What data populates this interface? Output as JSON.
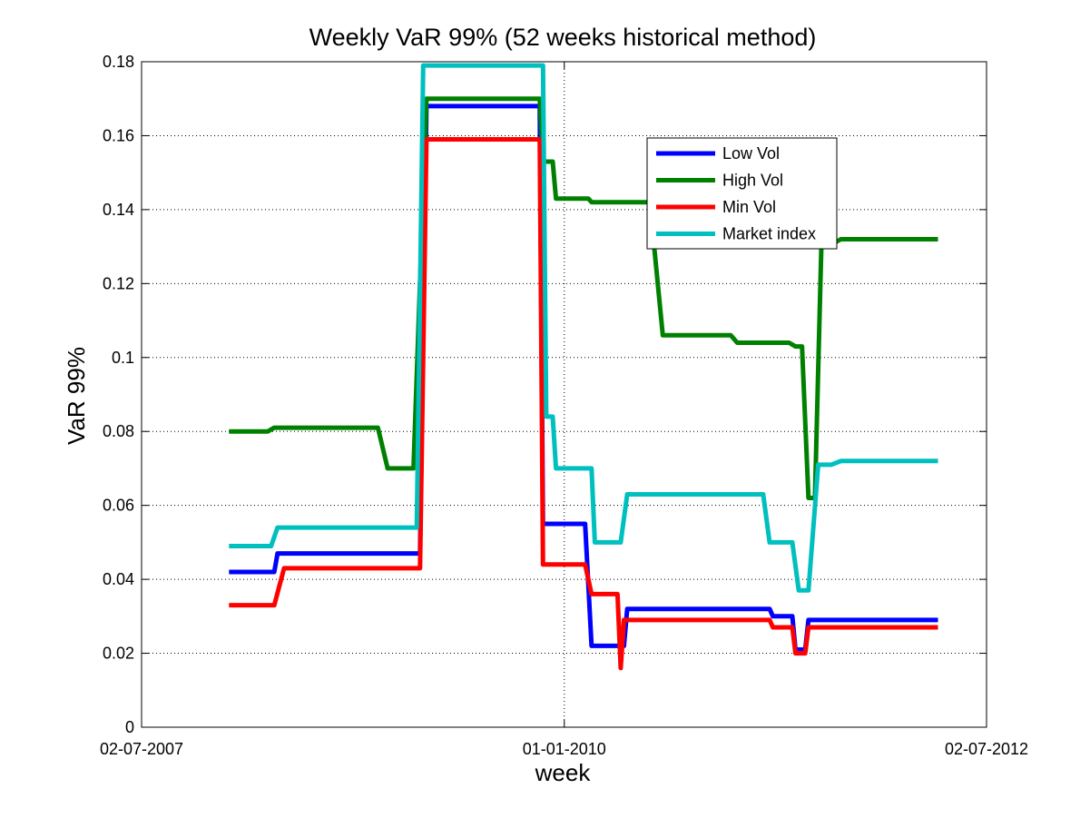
{
  "chart_data": {
    "type": "line",
    "title": "Weekly VaR 99% (52 weeks historical method)",
    "xlabel": "week",
    "ylabel": "VaR 99%",
    "x_ticks": [
      "02-07-2007",
      "01-01-2010",
      "02-07-2012"
    ],
    "x_range": [
      "2007-07-02",
      "2012-07-02"
    ],
    "y_ticks": [
      "0",
      "0.02",
      "0.04",
      "0.06",
      "0.08",
      "0.1",
      "0.12",
      "0.14",
      "0.16",
      "0.18"
    ],
    "ylim": [
      0,
      0.18
    ],
    "grid": "dotted",
    "legend_position": "upper-right",
    "series": [
      {
        "name": "Low Vol",
        "color": "#0000ff",
        "points": [
          [
            "2008-01-07",
            0.042
          ],
          [
            "2008-04-14",
            0.042
          ],
          [
            "2008-04-21",
            0.047
          ],
          [
            "2009-02-23",
            0.047
          ],
          [
            "2009-03-09",
            0.168
          ],
          [
            "2009-11-09",
            0.168
          ],
          [
            "2009-11-16",
            0.055
          ],
          [
            "2010-02-15",
            0.055
          ],
          [
            "2010-03-01",
            0.022
          ],
          [
            "2010-05-10",
            0.022
          ],
          [
            "2010-05-17",
            0.032
          ],
          [
            "2011-03-21",
            0.032
          ],
          [
            "2011-03-28",
            0.03
          ],
          [
            "2011-05-09",
            0.03
          ],
          [
            "2011-05-16",
            0.021
          ],
          [
            "2011-06-06",
            0.021
          ],
          [
            "2011-06-13",
            0.029
          ],
          [
            "2012-03-19",
            0.029
          ]
        ]
      },
      {
        "name": "High Vol",
        "color": "#008000",
        "points": [
          [
            "2008-01-07",
            0.08
          ],
          [
            "2008-03-31",
            0.08
          ],
          [
            "2008-04-14",
            0.081
          ],
          [
            "2008-11-24",
            0.081
          ],
          [
            "2008-12-15",
            0.07
          ],
          [
            "2009-02-09",
            0.07
          ],
          [
            "2009-03-09",
            0.17
          ],
          [
            "2009-11-09",
            0.17
          ],
          [
            "2009-11-16",
            0.153
          ],
          [
            "2009-12-07",
            0.153
          ],
          [
            "2009-12-14",
            0.143
          ],
          [
            "2010-02-22",
            0.143
          ],
          [
            "2010-03-01",
            0.142
          ],
          [
            "2010-07-05",
            0.142
          ],
          [
            "2010-08-02",
            0.106
          ],
          [
            "2010-12-27",
            0.106
          ],
          [
            "2011-01-10",
            0.104
          ],
          [
            "2011-05-02",
            0.104
          ],
          [
            "2011-05-16",
            0.103
          ],
          [
            "2011-05-30",
            0.103
          ],
          [
            "2011-06-13",
            0.062
          ],
          [
            "2011-06-27",
            0.062
          ],
          [
            "2011-07-11",
            0.131
          ],
          [
            "2011-08-08",
            0.131
          ],
          [
            "2011-08-22",
            0.132
          ],
          [
            "2012-03-19",
            0.132
          ]
        ]
      },
      {
        "name": "Min Vol",
        "color": "#ff0000",
        "points": [
          [
            "2008-01-07",
            0.033
          ],
          [
            "2008-04-14",
            0.033
          ],
          [
            "2008-05-05",
            0.043
          ],
          [
            "2009-02-23",
            0.043
          ],
          [
            "2009-03-09",
            0.159
          ],
          [
            "2009-11-09",
            0.159
          ],
          [
            "2009-11-16",
            0.044
          ],
          [
            "2010-02-15",
            0.044
          ],
          [
            "2010-03-01",
            0.036
          ],
          [
            "2010-04-26",
            0.036
          ],
          [
            "2010-05-03",
            0.016
          ],
          [
            "2010-05-10",
            0.029
          ],
          [
            "2011-03-21",
            0.029
          ],
          [
            "2011-03-28",
            0.027
          ],
          [
            "2011-05-09",
            0.027
          ],
          [
            "2011-05-16",
            0.02
          ],
          [
            "2011-06-06",
            0.02
          ],
          [
            "2011-06-13",
            0.027
          ],
          [
            "2012-03-19",
            0.027
          ]
        ]
      },
      {
        "name": "Market index",
        "color": "#00bfbf",
        "points": [
          [
            "2008-01-07",
            0.049
          ],
          [
            "2008-04-07",
            0.049
          ],
          [
            "2008-04-21",
            0.054
          ],
          [
            "2009-02-16",
            0.054
          ],
          [
            "2009-03-02",
            0.179
          ],
          [
            "2009-11-16",
            0.179
          ],
          [
            "2009-11-23",
            0.084
          ],
          [
            "2009-12-07",
            0.084
          ],
          [
            "2009-12-14",
            0.07
          ],
          [
            "2010-03-01",
            0.07
          ],
          [
            "2010-03-08",
            0.05
          ],
          [
            "2010-05-03",
            0.05
          ],
          [
            "2010-05-17",
            0.063
          ],
          [
            "2011-03-07",
            0.063
          ],
          [
            "2011-03-21",
            0.05
          ],
          [
            "2011-05-09",
            0.05
          ],
          [
            "2011-05-23",
            0.037
          ],
          [
            "2011-06-13",
            0.037
          ],
          [
            "2011-07-04",
            0.071
          ],
          [
            "2011-08-01",
            0.071
          ],
          [
            "2011-08-22",
            0.072
          ],
          [
            "2012-03-19",
            0.072
          ]
        ]
      }
    ]
  }
}
